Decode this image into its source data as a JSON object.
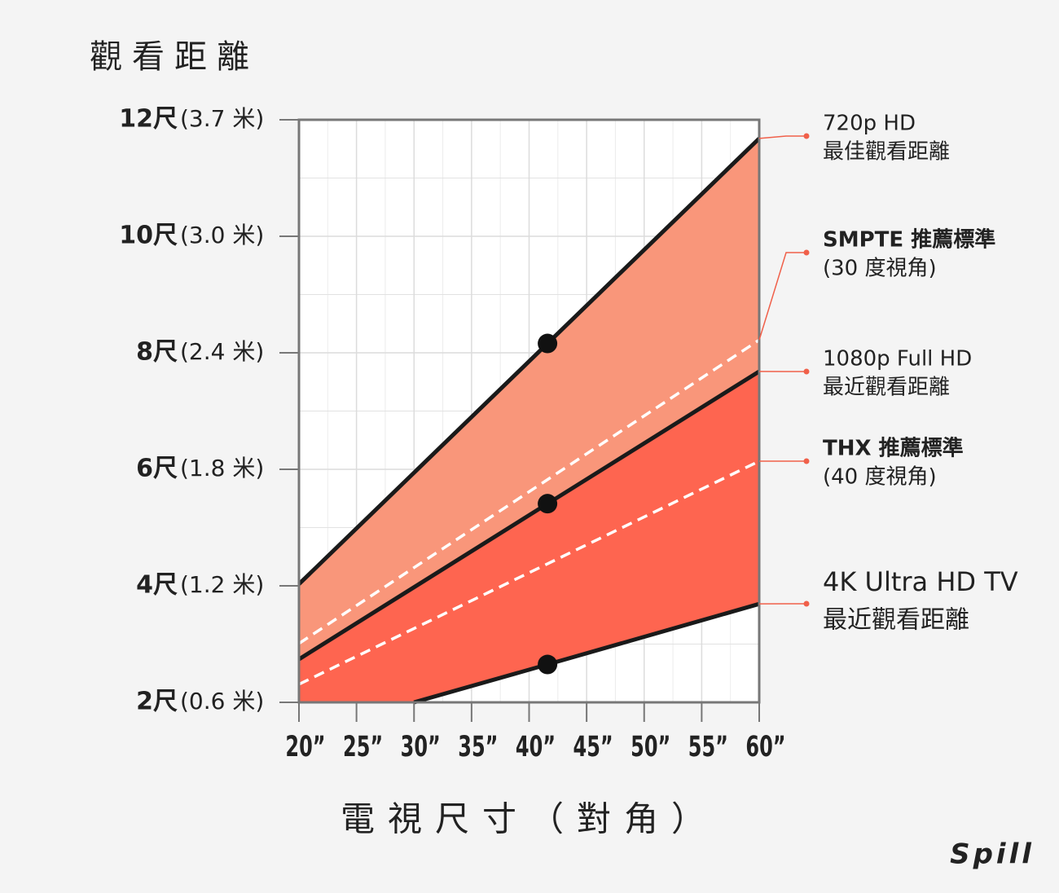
{
  "chart_data": {
    "type": "line",
    "title": "觀看距離",
    "xlabel": "電視尺寸（對角）",
    "brand": "Spill",
    "xlim": [
      20,
      60
    ],
    "ylim": [
      2,
      12
    ],
    "xticks": [
      {
        "value": 20,
        "label": "20”"
      },
      {
        "value": 25,
        "label": "25”"
      },
      {
        "value": 30,
        "label": "30”"
      },
      {
        "value": 35,
        "label": "35”"
      },
      {
        "value": 40,
        "label": "40”"
      },
      {
        "value": 45,
        "label": "45”"
      },
      {
        "value": 50,
        "label": "50”"
      },
      {
        "value": 55,
        "label": "55”"
      },
      {
        "value": 60,
        "label": "60”"
      }
    ],
    "xminor": [
      22.5,
      27.5,
      32.5,
      37.5,
      42.5,
      47.5,
      52.5,
      57.5
    ],
    "yticks": [
      {
        "value": 2,
        "label": "2尺",
        "sub": "(0.6 米)"
      },
      {
        "value": 4,
        "label": "4尺",
        "sub": "(1.2 米)"
      },
      {
        "value": 6,
        "label": "6尺",
        "sub": "(1.8 米)"
      },
      {
        "value": 8,
        "label": "8尺",
        "sub": "(2.4 米)"
      },
      {
        "value": 10,
        "label": "10尺",
        "sub": "(3.0 米)"
      },
      {
        "value": 12,
        "label": "12尺",
        "sub": "(3.7 米)"
      }
    ],
    "yminor": [
      3,
      5,
      7,
      9,
      11
    ],
    "grid": true,
    "series": [
      {
        "name": "720p HD",
        "note": "最佳觀看距離",
        "color": "#1a1a1a",
        "label_color": "#555555",
        "fill": "#f9967a",
        "dots": true,
        "x": [
          20,
          41.6,
          60
        ],
        "values": [
          4.03,
          8.16,
          11.68
        ]
      },
      {
        "name": "SMPTE 推薦標準",
        "note": "(30 度視角)",
        "color": "#ffffff",
        "label_color": "#222222",
        "dashed": true,
        "bold": true,
        "x": [
          20,
          60
        ],
        "values": [
          3.01,
          8.22
        ]
      },
      {
        "name": "1080p Full HD",
        "note": "最近觀看距離",
        "color": "#1a1a1a",
        "label_color": "#f39a84",
        "fill": "#fe6550",
        "dots": true,
        "x": [
          20,
          41.6,
          60
        ],
        "values": [
          2.74,
          5.41,
          7.68
        ]
      },
      {
        "name": "THX 推薦標準",
        "note": "(40 度視角)",
        "color": "#ffffff",
        "label_color": "#222222",
        "dashed": true,
        "bold": true,
        "x": [
          20,
          60
        ],
        "values": [
          2.31,
          6.14
        ]
      },
      {
        "name": "4K Ultra HD TV",
        "note": "最近觀看距離",
        "color": "#1a1a1a",
        "label_color": "#f0604a",
        "dots": true,
        "big": true,
        "x": [
          30,
          41.6,
          60
        ],
        "values": [
          2,
          2.65,
          3.69
        ]
      }
    ]
  }
}
